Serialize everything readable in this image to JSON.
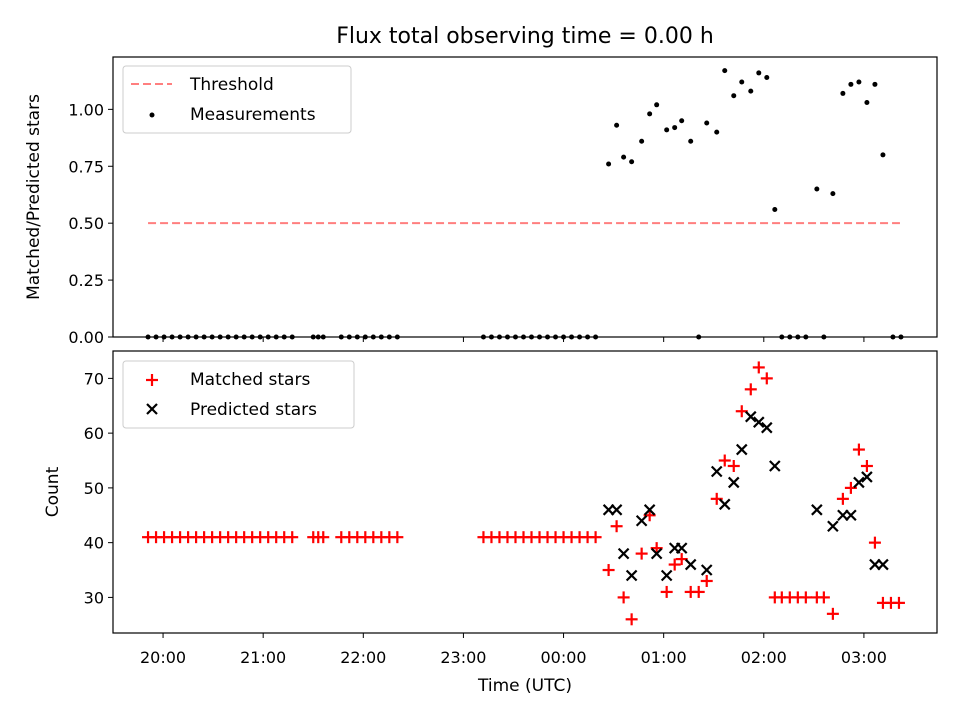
{
  "chart_data": [
    {
      "type": "scatter",
      "title": "Flux total observing time = 0.00 h",
      "xlabel": "",
      "ylabel": "Matched/Predicted stars",
      "xlim_hours": [
        19.5,
        27.73
      ],
      "ylim": [
        0,
        1.23
      ],
      "yticks": [
        "0.00",
        "0.25",
        "0.50",
        "0.75",
        "1.00"
      ],
      "legend_position": "upper left",
      "threshold": {
        "name": "Threshold",
        "y": 0.5,
        "x_range_hours": [
          19.85,
          27.36
        ],
        "color": "#ff7f7f",
        "style": "dashed"
      },
      "series": [
        {
          "name": "Measurements",
          "color": "#000000",
          "marker": "dot",
          "points": [
            [
              19.85,
              0
            ],
            [
              19.93,
              0
            ],
            [
              20.01,
              0
            ],
            [
              20.09,
              0
            ],
            [
              20.17,
              0
            ],
            [
              20.25,
              0
            ],
            [
              20.33,
              0
            ],
            [
              20.41,
              0
            ],
            [
              20.49,
              0
            ],
            [
              20.57,
              0
            ],
            [
              20.65,
              0
            ],
            [
              20.73,
              0
            ],
            [
              20.81,
              0
            ],
            [
              20.89,
              0
            ],
            [
              20.97,
              0
            ],
            [
              21.05,
              0
            ],
            [
              21.13,
              0
            ],
            [
              21.21,
              0
            ],
            [
              21.29,
              0
            ],
            [
              21.5,
              0
            ],
            [
              21.55,
              0
            ],
            [
              21.6,
              0
            ],
            [
              21.78,
              0
            ],
            [
              21.86,
              0
            ],
            [
              21.94,
              0
            ],
            [
              22.02,
              0
            ],
            [
              22.1,
              0
            ],
            [
              22.18,
              0
            ],
            [
              22.26,
              0
            ],
            [
              22.34,
              0
            ],
            [
              23.2,
              0
            ],
            [
              23.28,
              0
            ],
            [
              23.36,
              0
            ],
            [
              23.44,
              0
            ],
            [
              23.52,
              0
            ],
            [
              23.6,
              0
            ],
            [
              23.68,
              0
            ],
            [
              23.76,
              0
            ],
            [
              23.84,
              0
            ],
            [
              23.92,
              0
            ],
            [
              24.0,
              0
            ],
            [
              24.08,
              0
            ],
            [
              24.16,
              0
            ],
            [
              24.24,
              0
            ],
            [
              24.32,
              0
            ],
            [
              24.45,
              0.76
            ],
            [
              24.53,
              0.93
            ],
            [
              24.6,
              0.79
            ],
            [
              24.68,
              0.77
            ],
            [
              24.78,
              0.86
            ],
            [
              24.86,
              0.98
            ],
            [
              24.93,
              1.02
            ],
            [
              25.03,
              0.91
            ],
            [
              25.11,
              0.92
            ],
            [
              25.18,
              0.95
            ],
            [
              25.27,
              0.86
            ],
            [
              25.35,
              0
            ],
            [
              25.43,
              0.94
            ],
            [
              25.53,
              0.9
            ],
            [
              25.61,
              1.17
            ],
            [
              25.7,
              1.06
            ],
            [
              25.78,
              1.12
            ],
            [
              25.87,
              1.08
            ],
            [
              25.95,
              1.16
            ],
            [
              26.03,
              1.14
            ],
            [
              26.11,
              0.56
            ],
            [
              26.18,
              0
            ],
            [
              26.26,
              0
            ],
            [
              26.34,
              0
            ],
            [
              26.42,
              0
            ],
            [
              26.6,
              0
            ],
            [
              26.53,
              0.65
            ],
            [
              26.69,
              0.63
            ],
            [
              26.79,
              1.07
            ],
            [
              26.87,
              1.11
            ],
            [
              26.95,
              1.12
            ],
            [
              27.03,
              1.03
            ],
            [
              27.11,
              1.11
            ],
            [
              27.19,
              0.8
            ],
            [
              27.29,
              0
            ],
            [
              27.37,
              0
            ]
          ]
        }
      ]
    },
    {
      "type": "scatter",
      "title": "",
      "xlabel": "Time (UTC)",
      "ylabel": "Count",
      "xlim_hours": [
        19.5,
        27.73
      ],
      "ylim": [
        23.5,
        75
      ],
      "yticks": [
        "30",
        "40",
        "50",
        "60",
        "70"
      ],
      "xticks": [
        "20:00",
        "21:00",
        "22:00",
        "23:00",
        "00:00",
        "01:00",
        "02:00",
        "03:00"
      ],
      "xtick_hours": [
        20,
        21,
        22,
        23,
        24,
        25,
        26,
        27
      ],
      "legend_position": "upper left",
      "series": [
        {
          "name": "Matched stars",
          "color": "#ff0000",
          "marker": "plus",
          "points": [
            [
              19.85,
              41
            ],
            [
              19.93,
              41
            ],
            [
              20.01,
              41
            ],
            [
              20.09,
              41
            ],
            [
              20.17,
              41
            ],
            [
              20.25,
              41
            ],
            [
              20.33,
              41
            ],
            [
              20.41,
              41
            ],
            [
              20.49,
              41
            ],
            [
              20.57,
              41
            ],
            [
              20.65,
              41
            ],
            [
              20.73,
              41
            ],
            [
              20.81,
              41
            ],
            [
              20.89,
              41
            ],
            [
              20.97,
              41
            ],
            [
              21.05,
              41
            ],
            [
              21.13,
              41
            ],
            [
              21.21,
              41
            ],
            [
              21.29,
              41
            ],
            [
              21.5,
              41
            ],
            [
              21.55,
              41
            ],
            [
              21.6,
              41
            ],
            [
              21.78,
              41
            ],
            [
              21.86,
              41
            ],
            [
              21.94,
              41
            ],
            [
              22.02,
              41
            ],
            [
              22.1,
              41
            ],
            [
              22.18,
              41
            ],
            [
              22.26,
              41
            ],
            [
              22.34,
              41
            ],
            [
              23.2,
              41
            ],
            [
              23.28,
              41
            ],
            [
              23.36,
              41
            ],
            [
              23.44,
              41
            ],
            [
              23.52,
              41
            ],
            [
              23.6,
              41
            ],
            [
              23.68,
              41
            ],
            [
              23.76,
              41
            ],
            [
              23.84,
              41
            ],
            [
              23.92,
              41
            ],
            [
              24.0,
              41
            ],
            [
              24.08,
              41
            ],
            [
              24.16,
              41
            ],
            [
              24.24,
              41
            ],
            [
              24.32,
              41
            ],
            [
              24.45,
              35
            ],
            [
              24.53,
              43
            ],
            [
              24.6,
              30
            ],
            [
              24.68,
              26
            ],
            [
              24.78,
              38
            ],
            [
              24.86,
              45
            ],
            [
              24.93,
              39
            ],
            [
              25.03,
              31
            ],
            [
              25.11,
              36
            ],
            [
              25.18,
              37
            ],
            [
              25.27,
              31
            ],
            [
              25.35,
              31
            ],
            [
              25.43,
              33
            ],
            [
              25.53,
              48
            ],
            [
              25.61,
              55
            ],
            [
              25.7,
              54
            ],
            [
              25.78,
              64
            ],
            [
              25.87,
              68
            ],
            [
              25.95,
              72
            ],
            [
              26.03,
              70
            ],
            [
              26.11,
              30
            ],
            [
              26.18,
              30
            ],
            [
              26.26,
              30
            ],
            [
              26.34,
              30
            ],
            [
              26.42,
              30
            ],
            [
              26.53,
              30
            ],
            [
              26.6,
              30
            ],
            [
              26.69,
              27
            ],
            [
              26.79,
              48
            ],
            [
              26.87,
              50
            ],
            [
              26.95,
              57
            ],
            [
              27.03,
              54
            ],
            [
              27.11,
              40
            ],
            [
              27.19,
              29
            ],
            [
              27.27,
              29
            ],
            [
              27.35,
              29
            ]
          ]
        },
        {
          "name": "Predicted stars",
          "color": "#000000",
          "marker": "x",
          "points": [
            [
              24.45,
              46
            ],
            [
              24.53,
              46
            ],
            [
              24.6,
              38
            ],
            [
              24.68,
              34
            ],
            [
              24.78,
              44
            ],
            [
              24.86,
              46
            ],
            [
              24.93,
              38
            ],
            [
              25.03,
              34
            ],
            [
              25.11,
              39
            ],
            [
              25.18,
              39
            ],
            [
              25.27,
              36
            ],
            [
              25.43,
              35
            ],
            [
              25.53,
              53
            ],
            [
              25.61,
              47
            ],
            [
              25.7,
              51
            ],
            [
              25.78,
              57
            ],
            [
              25.87,
              63
            ],
            [
              25.95,
              62
            ],
            [
              26.03,
              61
            ],
            [
              26.11,
              54
            ],
            [
              26.53,
              46
            ],
            [
              26.69,
              43
            ],
            [
              26.79,
              45
            ],
            [
              26.87,
              45
            ],
            [
              26.95,
              51
            ],
            [
              27.03,
              52
            ],
            [
              27.11,
              36
            ],
            [
              27.19,
              36
            ]
          ]
        }
      ]
    }
  ]
}
